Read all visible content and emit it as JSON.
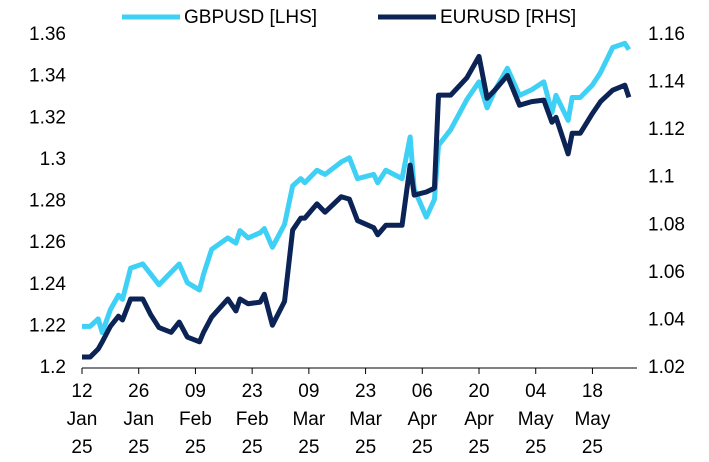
{
  "chart_data": {
    "type": "line",
    "x": [
      "2025-01-12",
      "2025-01-14",
      "2025-01-16",
      "2025-01-17",
      "2025-01-19",
      "2025-01-21",
      "2025-01-22",
      "2025-01-24",
      "2025-01-27",
      "2025-01-29",
      "2025-01-31",
      "2025-02-03",
      "2025-02-05",
      "2025-02-07",
      "2025-02-10",
      "2025-02-11",
      "2025-02-13",
      "2025-02-17",
      "2025-02-19",
      "2025-02-20",
      "2025-02-22",
      "2025-02-25",
      "2025-02-26",
      "2025-02-28",
      "2025-03-03",
      "2025-03-05",
      "2025-03-07",
      "2025-03-08",
      "2025-03-11",
      "2025-03-13",
      "2025-03-17",
      "2025-03-19",
      "2025-03-21",
      "2025-03-25",
      "2025-03-26",
      "2025-03-28",
      "2025-04-01",
      "2025-04-03",
      "2025-04-04",
      "2025-04-07",
      "2025-04-09",
      "2025-04-10",
      "2025-04-13",
      "2025-04-17",
      "2025-04-20",
      "2025-04-22",
      "2025-04-24",
      "2025-04-27",
      "2025-04-30",
      "2025-05-03",
      "2025-05-06",
      "2025-05-08",
      "2025-05-09",
      "2025-05-12",
      "2025-05-13",
      "2025-05-15",
      "2025-05-18",
      "2025-05-20",
      "2025-05-23",
      "2025-05-26",
      "2025-05-27"
    ],
    "series": [
      {
        "name": "GBPUSD [LHS]",
        "color": "#3fd0f5",
        "axis": "y",
        "values": [
          1.22,
          1.22,
          1.2236,
          1.217,
          1.228,
          1.235,
          1.233,
          1.248,
          1.25,
          1.245,
          1.24,
          1.246,
          1.25,
          1.241,
          1.2375,
          1.245,
          1.257,
          1.2625,
          1.26,
          1.266,
          1.2625,
          1.265,
          1.267,
          1.258,
          1.269,
          1.2875,
          1.291,
          1.289,
          1.295,
          1.293,
          1.299,
          1.301,
          1.291,
          1.293,
          1.289,
          1.295,
          1.291,
          1.311,
          1.286,
          1.2725,
          1.281,
          1.307,
          1.3145,
          1.329,
          1.3375,
          1.325,
          1.3337,
          1.344,
          1.331,
          1.3337,
          1.3375,
          1.3227,
          1.331,
          1.319,
          1.33,
          1.33,
          1.336,
          1.342,
          1.354,
          1.356,
          1.353
        ]
      },
      {
        "name": "EURUSD [RHS]",
        "color": "#0b2355",
        "axis": "y2",
        "values": [
          1.0246,
          1.0246,
          1.028,
          1.031,
          1.0375,
          1.0418,
          1.0402,
          1.049,
          1.049,
          1.0423,
          1.037,
          1.035,
          1.0393,
          1.033,
          1.031,
          1.035,
          1.0414,
          1.049,
          1.044,
          1.049,
          1.047,
          1.0477,
          1.051,
          1.038,
          1.048,
          1.078,
          1.083,
          1.083,
          1.089,
          1.0855,
          1.092,
          1.091,
          1.082,
          1.079,
          1.076,
          1.08,
          1.08,
          1.1053,
          1.0927,
          1.094,
          1.0956,
          1.1347,
          1.1347,
          1.142,
          1.151,
          1.1334,
          1.137,
          1.143,
          1.1305,
          1.132,
          1.1326,
          1.1233,
          1.1254,
          1.11,
          1.1187,
          1.1187,
          1.127,
          1.132,
          1.1368,
          1.1389,
          1.1338
        ]
      }
    ],
    "xlim": [
      "2025-01-12",
      "2025-05-29"
    ],
    "xticks": [
      {
        "value": "2025-01-12",
        "label": "12 Jan 25"
      },
      {
        "value": "2025-01-26",
        "label": "26 Jan 25"
      },
      {
        "value": "2025-02-09",
        "label": "09 Feb 25"
      },
      {
        "value": "2025-02-23",
        "label": "23 Feb 25"
      },
      {
        "value": "2025-03-09",
        "label": "09 Mar 25"
      },
      {
        "value": "2025-03-23",
        "label": "23 Mar 25"
      },
      {
        "value": "2025-04-06",
        "label": "06 Apr 25"
      },
      {
        "value": "2025-04-20",
        "label": "20 Apr 25"
      },
      {
        "value": "2025-05-04",
        "label": "04 May 25"
      },
      {
        "value": "2025-05-18",
        "label": "18 May 25"
      }
    ],
    "ylim": [
      1.2,
      1.36
    ],
    "yticks": [
      1.2,
      1.22,
      1.24,
      1.26,
      1.28,
      1.3,
      1.32,
      1.34,
      1.36
    ],
    "y2lim": [
      1.02,
      1.16
    ],
    "y2ticks": [
      1.02,
      1.04,
      1.06,
      1.08,
      1.1,
      1.12,
      1.14,
      1.16
    ],
    "legend": "top"
  }
}
